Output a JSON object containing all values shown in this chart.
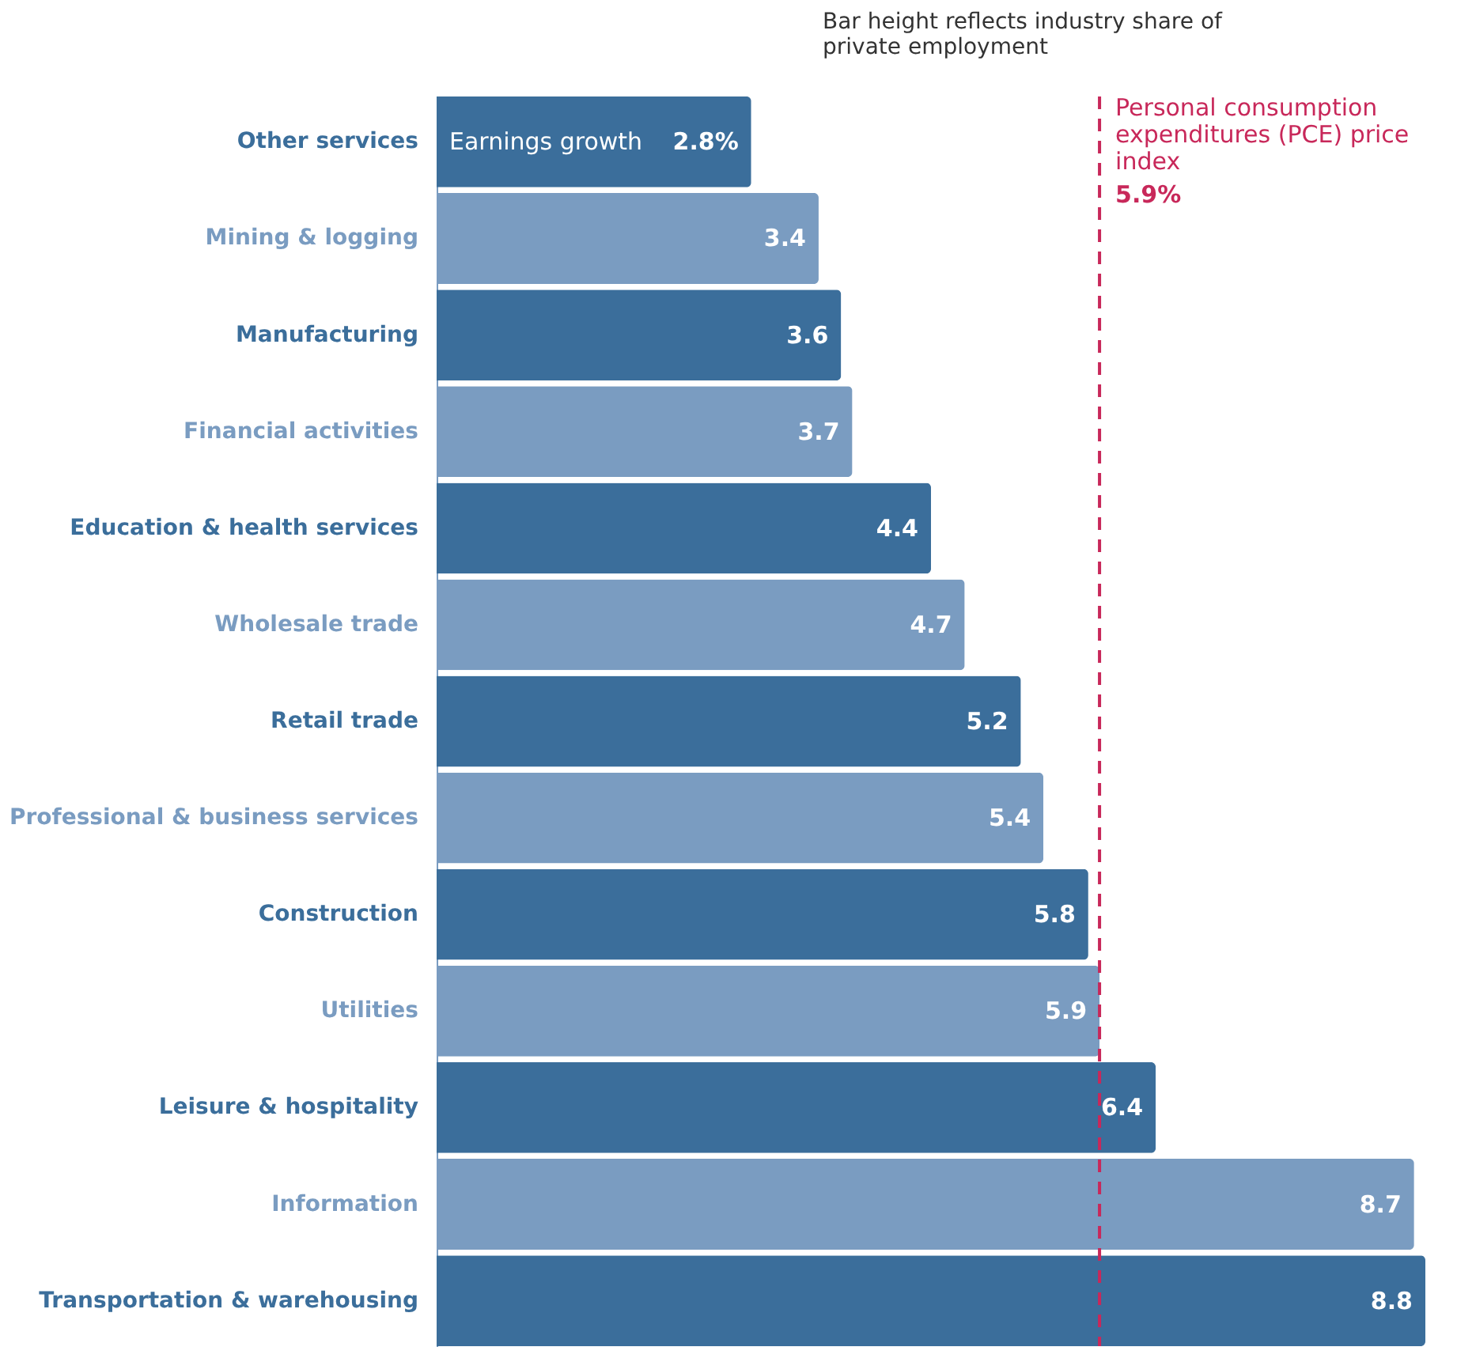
{
  "chart_data": {
    "type": "bar",
    "orientation": "horizontal",
    "categories": [
      "Other services",
      "Mining & logging",
      "Manufacturing",
      "Financial activities",
      "Education & health services",
      "Wholesale trade",
      "Retail trade",
      "Professional & business services",
      "Construction",
      "Utilities",
      "Leisure & hospitality",
      "Information",
      "Transportation & warehousing"
    ],
    "values": [
      2.8,
      3.4,
      3.6,
      3.7,
      4.4,
      4.7,
      5.2,
      5.4,
      5.8,
      5.9,
      6.4,
      8.7,
      8.8
    ],
    "colors": [
      "#3b6e9b",
      "#7a9cc1",
      "#3b6e9b",
      "#7a9cc1",
      "#3b6e9b",
      "#7a9cc1",
      "#3b6e9b",
      "#7a9cc1",
      "#3b6e9b",
      "#7a9cc1",
      "#3b6e9b",
      "#7a9cc1",
      "#3b6e9b"
    ],
    "value_labels": [
      "2.8%",
      "3.4",
      "3.6",
      "3.7",
      "4.4",
      "4.7",
      "5.2",
      "5.4",
      "5.8",
      "5.9",
      "6.4",
      "8.7",
      "8.8"
    ],
    "xlim": [
      0,
      8.8
    ],
    "tick_labels": "y",
    "legend": false,
    "ref_lines": [
      {
        "axis": "x",
        "value": 5.9,
        "label": "Personal consumption expenditures (PCE) price index",
        "color": "#c8285a",
        "line_style": "dashed"
      }
    ],
    "annotations": [
      "Bar height reflects industry share of private employment",
      {
        "text": "Earnings growth",
        "x": 0,
        "y": "Other services"
      },
      {
        "text": "5.9%",
        "x": 5.9
      }
    ]
  }
}
